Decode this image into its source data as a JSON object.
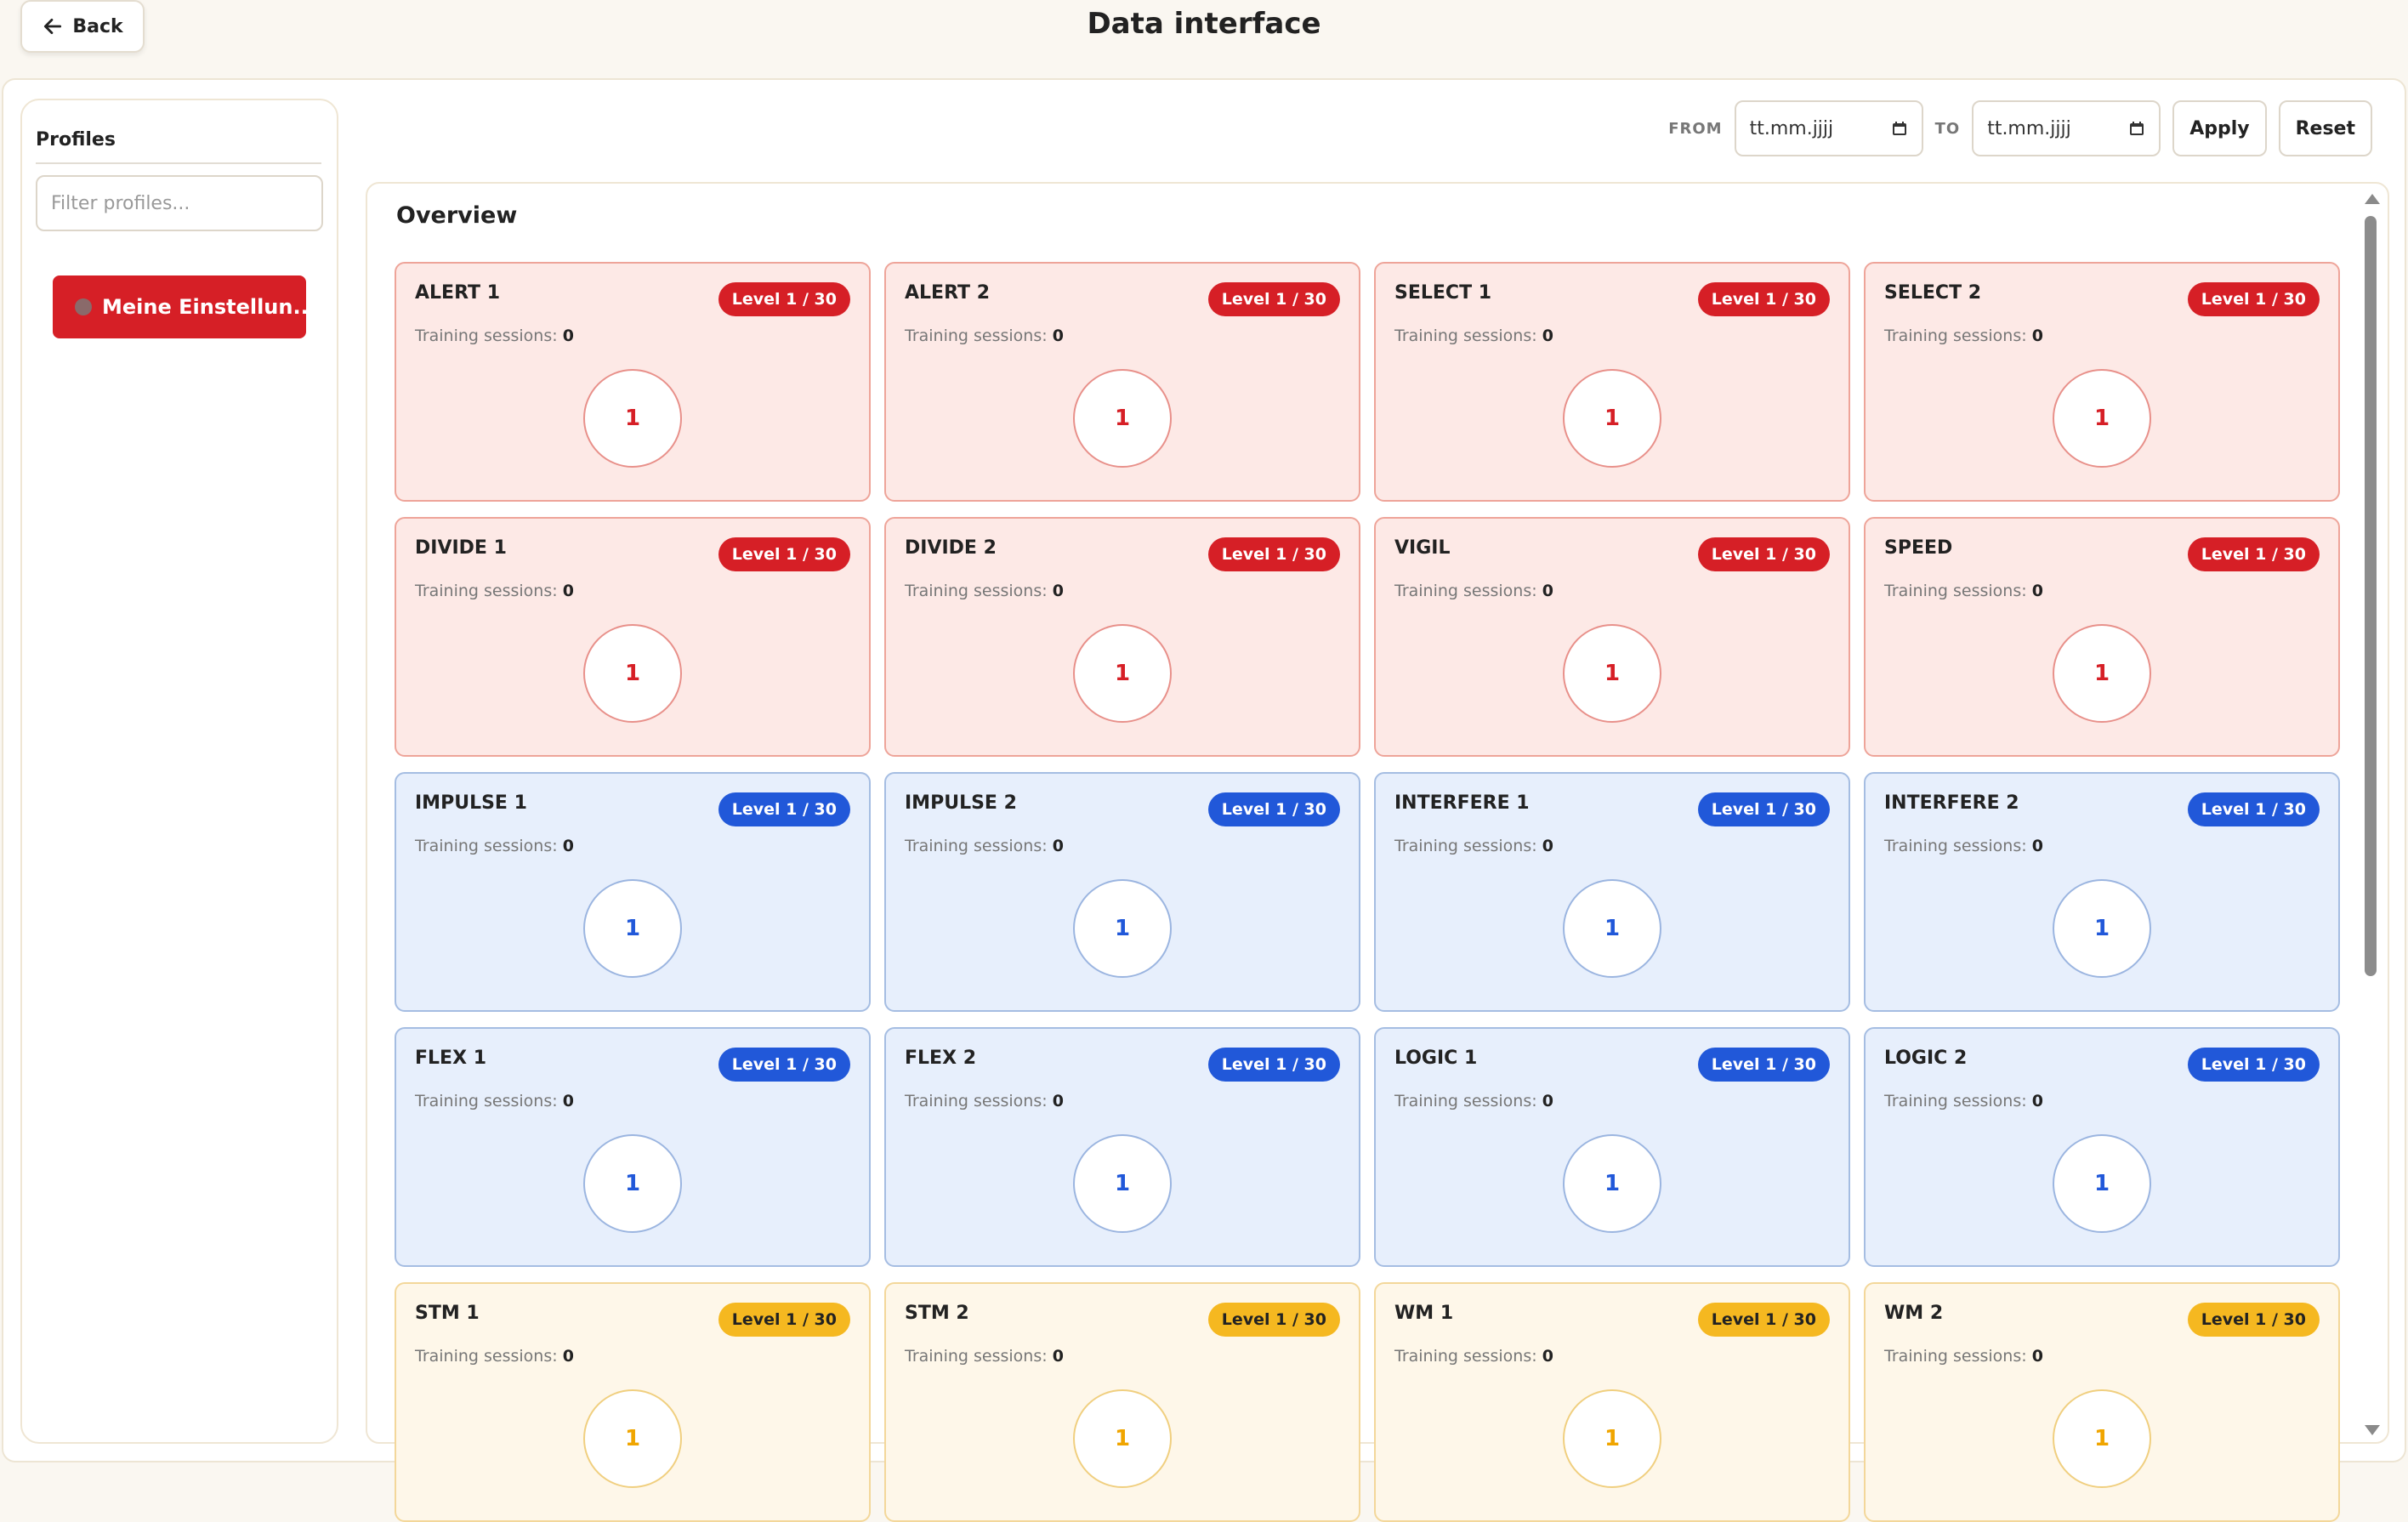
{
  "header": {
    "back_label": "Back",
    "title": "Data interface"
  },
  "sidebar": {
    "title": "Profiles",
    "filter_placeholder": "Filter profiles...",
    "profile_label": "Meine Einstellun..."
  },
  "filters": {
    "from_label": "FROM",
    "from_placeholder": "tt.mm.jjjj",
    "to_label": "TO",
    "to_placeholder": "tt.mm.jjjj",
    "apply_label": "Apply",
    "reset_label": "Reset"
  },
  "overview": {
    "title": "Overview",
    "sessions_label": "Training sessions:",
    "cards": [
      {
        "name": "ALERT 1",
        "badge": "Level 1 / 30",
        "sessions": "0",
        "level": "1",
        "theme": "red"
      },
      {
        "name": "ALERT 2",
        "badge": "Level 1 / 30",
        "sessions": "0",
        "level": "1",
        "theme": "red"
      },
      {
        "name": "SELECT 1",
        "badge": "Level 1 / 30",
        "sessions": "0",
        "level": "1",
        "theme": "red"
      },
      {
        "name": "SELECT 2",
        "badge": "Level 1 / 30",
        "sessions": "0",
        "level": "1",
        "theme": "red"
      },
      {
        "name": "DIVIDE 1",
        "badge": "Level 1 / 30",
        "sessions": "0",
        "level": "1",
        "theme": "red"
      },
      {
        "name": "DIVIDE 2",
        "badge": "Level 1 / 30",
        "sessions": "0",
        "level": "1",
        "theme": "red"
      },
      {
        "name": "VIGIL",
        "badge": "Level 1 / 30",
        "sessions": "0",
        "level": "1",
        "theme": "red"
      },
      {
        "name": "SPEED",
        "badge": "Level 1 / 30",
        "sessions": "0",
        "level": "1",
        "theme": "red"
      },
      {
        "name": "IMPULSE 1",
        "badge": "Level 1 / 30",
        "sessions": "0",
        "level": "1",
        "theme": "blue"
      },
      {
        "name": "IMPULSE 2",
        "badge": "Level 1 / 30",
        "sessions": "0",
        "level": "1",
        "theme": "blue"
      },
      {
        "name": "INTERFERE 1",
        "badge": "Level 1 / 30",
        "sessions": "0",
        "level": "1",
        "theme": "blue"
      },
      {
        "name": "INTERFERE 2",
        "badge": "Level 1 / 30",
        "sessions": "0",
        "level": "1",
        "theme": "blue"
      },
      {
        "name": "FLEX 1",
        "badge": "Level 1 / 30",
        "sessions": "0",
        "level": "1",
        "theme": "blue"
      },
      {
        "name": "FLEX 2",
        "badge": "Level 1 / 30",
        "sessions": "0",
        "level": "1",
        "theme": "blue"
      },
      {
        "name": "LOGIC 1",
        "badge": "Level 1 / 30",
        "sessions": "0",
        "level": "1",
        "theme": "blue"
      },
      {
        "name": "LOGIC 2",
        "badge": "Level 1 / 30",
        "sessions": "0",
        "level": "1",
        "theme": "blue"
      },
      {
        "name": "STM 1",
        "badge": "Level 1 / 30",
        "sessions": "0",
        "level": "1",
        "theme": "yellow"
      },
      {
        "name": "STM 2",
        "badge": "Level 1 / 30",
        "sessions": "0",
        "level": "1",
        "theme": "yellow"
      },
      {
        "name": "WM 1",
        "badge": "Level 1 / 30",
        "sessions": "0",
        "level": "1",
        "theme": "yellow"
      },
      {
        "name": "WM 2",
        "badge": "Level 1 / 30",
        "sessions": "0",
        "level": "1",
        "theme": "yellow"
      }
    ]
  },
  "icons": {
    "back": "arrow-left-icon",
    "calendar": "calendar-icon"
  },
  "colors": {
    "red": "#d61f26",
    "blue": "#2158d9",
    "yellow": "#f5b820"
  }
}
